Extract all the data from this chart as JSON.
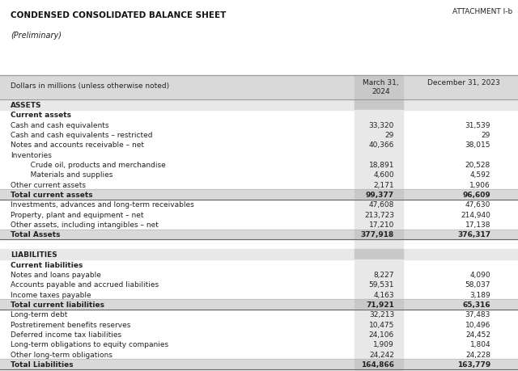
{
  "attachment_label": "ATTACHMENT I-b",
  "title": "CONDENSED CONSOLIDATED BALANCE SHEET",
  "subtitle": "(Preliminary)",
  "header_label": "Dollars in millions (unless otherwise noted)",
  "col1_header": "March 31,\n2024",
  "col2_header": "December 31, 2023",
  "rows": [
    {
      "label": "ASSETS",
      "v1": null,
      "v2": null,
      "style": "section"
    },
    {
      "label": "Current assets",
      "v1": null,
      "v2": null,
      "style": "subsection"
    },
    {
      "label": "Cash and cash equivalents",
      "v1": "33,320",
      "v2": "31,539",
      "style": "normal"
    },
    {
      "label": "Cash and cash equivalents – restricted",
      "v1": "29",
      "v2": "29",
      "style": "normal"
    },
    {
      "label": "Notes and accounts receivable – net",
      "v1": "40,366",
      "v2": "38,015",
      "style": "normal"
    },
    {
      "label": "Inventories",
      "v1": null,
      "v2": null,
      "style": "normal"
    },
    {
      "label": "   Crude oil, products and merchandise",
      "v1": "18,891",
      "v2": "20,528",
      "style": "indent"
    },
    {
      "label": "   Materials and supplies",
      "v1": "4,600",
      "v2": "4,592",
      "style": "indent"
    },
    {
      "label": "Other current assets",
      "v1": "2,171",
      "v2": "1,906",
      "style": "normal"
    },
    {
      "label": "Total current assets",
      "v1": "99,377",
      "v2": "96,609",
      "style": "total"
    },
    {
      "label": "Investments, advances and long-term receivables",
      "v1": "47,608",
      "v2": "47,630",
      "style": "normal"
    },
    {
      "label": "Property, plant and equipment – net",
      "v1": "213,723",
      "v2": "214,940",
      "style": "normal"
    },
    {
      "label": "Other assets, including intangibles – net",
      "v1": "17,210",
      "v2": "17,138",
      "style": "normal"
    },
    {
      "label": "Total Assets",
      "v1": "377,918",
      "v2": "376,317",
      "style": "total"
    },
    {
      "label": "",
      "v1": null,
      "v2": null,
      "style": "spacer"
    },
    {
      "label": "LIABILITIES",
      "v1": null,
      "v2": null,
      "style": "section"
    },
    {
      "label": "Current liabilities",
      "v1": null,
      "v2": null,
      "style": "subsection"
    },
    {
      "label": "Notes and loans payable",
      "v1": "8,227",
      "v2": "4,090",
      "style": "normal"
    },
    {
      "label": "Accounts payable and accrued liabilities",
      "v1": "59,531",
      "v2": "58,037",
      "style": "normal"
    },
    {
      "label": "Income taxes payable",
      "v1": "4,163",
      "v2": "3,189",
      "style": "normal"
    },
    {
      "label": "Total current liabilities",
      "v1": "71,921",
      "v2": "65,316",
      "style": "total"
    },
    {
      "label": "Long-term debt",
      "v1": "32,213",
      "v2": "37,483",
      "style": "normal"
    },
    {
      "label": "Postretirement benefits reserves",
      "v1": "10,475",
      "v2": "10,496",
      "style": "normal"
    },
    {
      "label": "Deferred income tax liabilities",
      "v1": "24,106",
      "v2": "24,452",
      "style": "normal"
    },
    {
      "label": "Long-term obligations to equity companies",
      "v1": "1,909",
      "v2": "1,804",
      "style": "normal"
    },
    {
      "label": "Other long-term obligations",
      "v1": "24,242",
      "v2": "24,228",
      "style": "normal"
    },
    {
      "label": "Total Liabilities",
      "v1": "164,866",
      "v2": "163,779",
      "style": "total"
    }
  ],
  "bg_color": "#ffffff",
  "header_bg": "#d9d9d9",
  "col_shade": "#e8e8e8",
  "total_shade": "#d9d9d9",
  "section_shade": "#e8e8e8",
  "text_color": "#222222",
  "line_color": "#aaaaaa",
  "title_color": "#111111"
}
